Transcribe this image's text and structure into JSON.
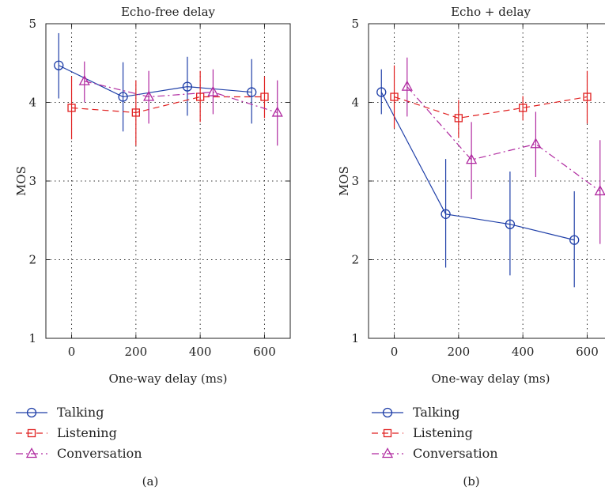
{
  "chart_data": [
    {
      "type": "line",
      "title": "Echo-free delay",
      "xlabel": "One-way delay (ms)",
      "ylabel": "MOS",
      "xticks": [
        0,
        200,
        400,
        600
      ],
      "yticks": [
        1,
        2,
        3,
        4,
        5
      ],
      "xlim": [
        -80,
        680
      ],
      "ylim": [
        1,
        5
      ],
      "grid": true,
      "caption": "(a)",
      "series": [
        {
          "name": "Talking",
          "color": "#1f3fa8",
          "dash": "solid",
          "marker": "circle",
          "x": [
            -40,
            160,
            360,
            560
          ],
          "y": [
            4.47,
            4.07,
            4.2,
            4.13
          ],
          "err_low": [
            4.05,
            3.63,
            3.83,
            3.73
          ],
          "err_high": [
            4.88,
            4.51,
            4.58,
            4.55
          ]
        },
        {
          "name": "Listening",
          "color": "#e02020",
          "dash": "8,5",
          "marker": "square",
          "x": [
            0,
            200,
            400,
            600
          ],
          "y": [
            3.93,
            3.87,
            4.07,
            4.07
          ],
          "err_low": [
            3.53,
            3.45,
            3.75,
            3.8
          ],
          "err_high": [
            4.33,
            4.28,
            4.4,
            4.33
          ]
        },
        {
          "name": "Conversation",
          "color": "#b02aa0",
          "dash": "9,4,2,4",
          "marker": "triangle",
          "x": [
            40,
            240,
            440,
            640
          ],
          "y": [
            4.27,
            4.07,
            4.13,
            3.87
          ],
          "err_low": [
            4.0,
            3.73,
            3.85,
            3.45
          ],
          "err_high": [
            4.52,
            4.4,
            4.42,
            4.28
          ]
        }
      ]
    },
    {
      "type": "line",
      "title": "Echo + delay",
      "xlabel": "One-way delay (ms)",
      "ylabel": "MOS",
      "xticks": [
        0,
        200,
        400,
        600
      ],
      "yticks": [
        1,
        2,
        3,
        4,
        5
      ],
      "xlim": [
        -80,
        680
      ],
      "ylim": [
        1,
        5
      ],
      "grid": true,
      "caption": "(b)",
      "series": [
        {
          "name": "Talking",
          "color": "#1f3fa8",
          "dash": "solid",
          "marker": "circle",
          "x": [
            -40,
            160,
            360,
            560
          ],
          "y": [
            4.13,
            2.58,
            2.45,
            2.25
          ],
          "err_low": [
            3.85,
            1.9,
            1.8,
            1.65
          ],
          "err_high": [
            4.42,
            3.28,
            3.12,
            2.87
          ]
        },
        {
          "name": "Listening",
          "color": "#e02020",
          "dash": "8,5",
          "marker": "square",
          "x": [
            0,
            200,
            400,
            600
          ],
          "y": [
            4.07,
            3.8,
            3.93,
            4.07
          ],
          "err_low": [
            3.67,
            3.55,
            3.77,
            3.73
          ],
          "err_high": [
            4.47,
            4.03,
            4.08,
            4.4
          ]
        },
        {
          "name": "Conversation",
          "color": "#b02aa0",
          "dash": "9,4,2,4",
          "marker": "triangle",
          "x": [
            40,
            240,
            440,
            640
          ],
          "y": [
            4.2,
            3.27,
            3.47,
            2.87
          ],
          "err_low": [
            3.82,
            2.77,
            3.05,
            2.2
          ],
          "err_high": [
            4.57,
            3.75,
            3.88,
            3.52
          ]
        }
      ]
    }
  ]
}
